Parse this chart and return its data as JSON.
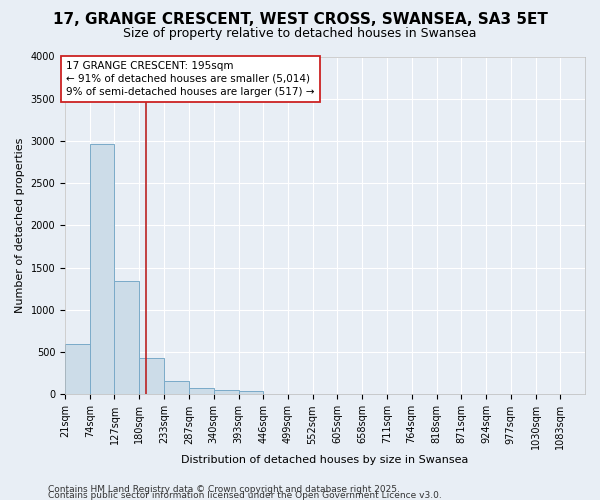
{
  "title": "17, GRANGE CRESCENT, WEST CROSS, SWANSEA, SA3 5ET",
  "subtitle": "Size of property relative to detached houses in Swansea",
  "xlabel": "Distribution of detached houses by size in Swansea",
  "ylabel": "Number of detached properties",
  "bin_edges": [
    21,
    74,
    127,
    180,
    233,
    287,
    340,
    393,
    446,
    499,
    552,
    605,
    658,
    711,
    764,
    818,
    871,
    924,
    977,
    1030,
    1083
  ],
  "bar_heights": [
    600,
    2970,
    1340,
    430,
    165,
    80,
    50,
    40,
    0,
    0,
    0,
    0,
    0,
    0,
    0,
    0,
    0,
    0,
    0,
    0
  ],
  "bar_color": "#ccdce8",
  "bar_edge_color": "#7aaac8",
  "background_color": "#e8eef5",
  "grid_color": "#ffffff",
  "ylim": [
    0,
    4000
  ],
  "yticks": [
    0,
    500,
    1000,
    1500,
    2000,
    2500,
    3000,
    3500,
    4000
  ],
  "property_size": 195,
  "red_line_color": "#bb2222",
  "annotation_text": "17 GRANGE CRESCENT: 195sqm\n← 91% of detached houses are smaller (5,014)\n9% of semi-detached houses are larger (517) →",
  "annotation_box_color": "#ffffff",
  "annotation_box_edge": "#cc2222",
  "footer_line1": "Contains HM Land Registry data © Crown copyright and database right 2025.",
  "footer_line2": "Contains public sector information licensed under the Open Government Licence v3.0.",
  "title_fontsize": 11,
  "subtitle_fontsize": 9,
  "tick_label_fontsize": 7,
  "ylabel_fontsize": 8,
  "xlabel_fontsize": 8,
  "annotation_fontsize": 7.5,
  "footer_fontsize": 6.5
}
